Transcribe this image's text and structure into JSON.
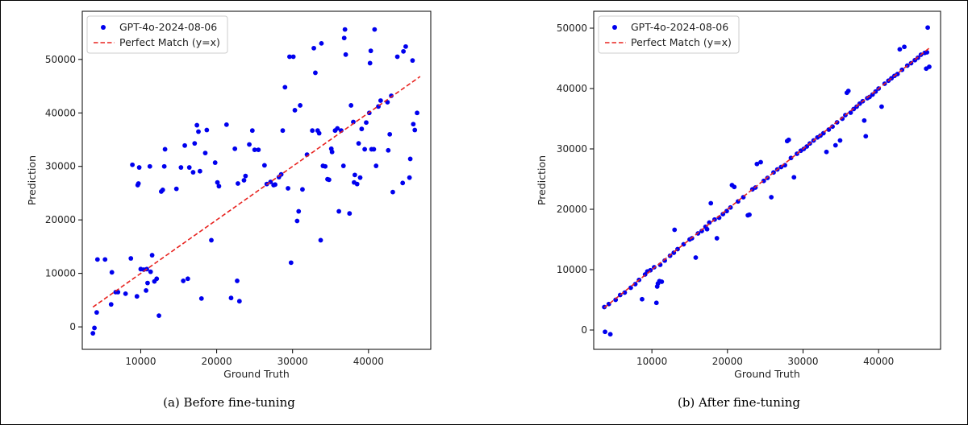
{
  "chart_data": [
    {
      "type": "scatter",
      "caption": "(a) Before fine-tuning",
      "xlabel": "Ground Truth",
      "ylabel": "Prediction",
      "xlim": [
        2300,
        48200
      ],
      "ylim": [
        -4200,
        59000
      ],
      "xticks": [
        10000,
        20000,
        30000,
        40000
      ],
      "yticks": [
        0,
        10000,
        20000,
        30000,
        40000,
        50000
      ],
      "grid": false,
      "legend_position": "top-left",
      "colors": {
        "scatter": "#0000ee",
        "line": "#e8231f"
      },
      "legend": [
        "GPT-4o-2024-08-06",
        "Perfect Match (y=x)"
      ],
      "reference_line": {
        "type": "y=x",
        "from": 3700,
        "to": 46800
      },
      "points": [
        [
          3700,
          -1200
        ],
        [
          3900,
          -200
        ],
        [
          4200,
          2700
        ],
        [
          4300,
          12600
        ],
        [
          5300,
          12600
        ],
        [
          6100,
          4200
        ],
        [
          6200,
          10200
        ],
        [
          6700,
          6500
        ],
        [
          7000,
          6500
        ],
        [
          8000,
          6200
        ],
        [
          8700,
          12800
        ],
        [
          8900,
          30300
        ],
        [
          9500,
          5700
        ],
        [
          9600,
          26500
        ],
        [
          9700,
          26800
        ],
        [
          9800,
          29800
        ],
        [
          10000,
          10800
        ],
        [
          10400,
          10700
        ],
        [
          10800,
          10800
        ],
        [
          10700,
          6800
        ],
        [
          10900,
          8200
        ],
        [
          11200,
          30000
        ],
        [
          11300,
          10300
        ],
        [
          11500,
          13400
        ],
        [
          11800,
          8500
        ],
        [
          12100,
          9000
        ],
        [
          12400,
          2100
        ],
        [
          12700,
          25300
        ],
        [
          12900,
          25600
        ],
        [
          13100,
          30000
        ],
        [
          13200,
          33200
        ],
        [
          14700,
          25800
        ],
        [
          15300,
          29800
        ],
        [
          15600,
          8600
        ],
        [
          15800,
          33900
        ],
        [
          16200,
          9000
        ],
        [
          16400,
          29800
        ],
        [
          16900,
          28900
        ],
        [
          17100,
          34300
        ],
        [
          17400,
          37700
        ],
        [
          17600,
          36500
        ],
        [
          17800,
          29100
        ],
        [
          18000,
          5300
        ],
        [
          18500,
          32500
        ],
        [
          18700,
          36800
        ],
        [
          19300,
          16200
        ],
        [
          19800,
          30700
        ],
        [
          20100,
          27000
        ],
        [
          20300,
          26300
        ],
        [
          21300,
          37800
        ],
        [
          21900,
          5400
        ],
        [
          22400,
          33300
        ],
        [
          22700,
          8600
        ],
        [
          22800,
          26800
        ],
        [
          23000,
          4800
        ],
        [
          23600,
          27400
        ],
        [
          23800,
          28200
        ],
        [
          24300,
          34100
        ],
        [
          24700,
          36700
        ],
        [
          25000,
          33100
        ],
        [
          25500,
          33100
        ],
        [
          26300,
          30200
        ],
        [
          26600,
          26700
        ],
        [
          27100,
          27100
        ],
        [
          27500,
          26500
        ],
        [
          27700,
          26600
        ],
        [
          28200,
          28000
        ],
        [
          28500,
          28500
        ],
        [
          28700,
          36700
        ],
        [
          29000,
          44800
        ],
        [
          29400,
          25900
        ],
        [
          29600,
          50500
        ],
        [
          29800,
          12000
        ],
        [
          30100,
          50500
        ],
        [
          30300,
          40500
        ],
        [
          30600,
          19800
        ],
        [
          30800,
          21600
        ],
        [
          31000,
          41400
        ],
        [
          31300,
          25700
        ],
        [
          31900,
          32200
        ],
        [
          32600,
          36700
        ],
        [
          32800,
          52100
        ],
        [
          33000,
          47500
        ],
        [
          33300,
          36700
        ],
        [
          33500,
          36200
        ],
        [
          33700,
          16200
        ],
        [
          33800,
          53000
        ],
        [
          34000,
          30100
        ],
        [
          34300,
          30000
        ],
        [
          34600,
          27600
        ],
        [
          34800,
          27500
        ],
        [
          35100,
          33300
        ],
        [
          35200,
          32700
        ],
        [
          35600,
          36700
        ],
        [
          35900,
          37100
        ],
        [
          36100,
          21600
        ],
        [
          36400,
          36700
        ],
        [
          36700,
          30100
        ],
        [
          36800,
          54000
        ],
        [
          36900,
          55600
        ],
        [
          37000,
          50900
        ],
        [
          37500,
          21200
        ],
        [
          37700,
          41400
        ],
        [
          38000,
          38300
        ],
        [
          38100,
          27000
        ],
        [
          38200,
          28400
        ],
        [
          38500,
          26700
        ],
        [
          38700,
          34300
        ],
        [
          38900,
          27900
        ],
        [
          39100,
          37000
        ],
        [
          39500,
          33200
        ],
        [
          39700,
          38200
        ],
        [
          40100,
          40000
        ],
        [
          40200,
          49300
        ],
        [
          40300,
          51600
        ],
        [
          40400,
          33200
        ],
        [
          40700,
          33200
        ],
        [
          40800,
          55600
        ],
        [
          41000,
          30100
        ],
        [
          41300,
          41200
        ],
        [
          41600,
          42300
        ],
        [
          42500,
          42000
        ],
        [
          42600,
          33000
        ],
        [
          42800,
          36000
        ],
        [
          43000,
          43200
        ],
        [
          43200,
          25200
        ],
        [
          43800,
          50500
        ],
        [
          44500,
          26900
        ],
        [
          44600,
          51500
        ],
        [
          44900,
          52400
        ],
        [
          45400,
          27900
        ],
        [
          45500,
          31400
        ],
        [
          45800,
          49800
        ],
        [
          45900,
          37900
        ],
        [
          46100,
          36800
        ],
        [
          46400,
          40000
        ]
      ]
    },
    {
      "type": "scatter",
      "caption": "(b) After fine-tuning",
      "xlabel": "Ground Truth",
      "ylabel": "Prediction",
      "xlim": [
        2300,
        48200
      ],
      "ylim": [
        -3200,
        52800
      ],
      "xticks": [
        10000,
        20000,
        30000,
        40000
      ],
      "yticks": [
        0,
        10000,
        20000,
        30000,
        40000,
        50000
      ],
      "grid": false,
      "legend_position": "top-left",
      "colors": {
        "scatter": "#0000ee",
        "line": "#e8231f"
      },
      "legend": [
        "GPT-4o-2024-08-06",
        "Perfect Match (y=x)"
      ],
      "reference_line": {
        "type": "y=x",
        "from": 3700,
        "to": 46800
      },
      "points": [
        [
          3700,
          3800
        ],
        [
          3800,
          -300
        ],
        [
          4300,
          4300
        ],
        [
          4500,
          -700
        ],
        [
          5200,
          5000
        ],
        [
          5800,
          5800
        ],
        [
          6400,
          6200
        ],
        [
          7200,
          7000
        ],
        [
          7800,
          7600
        ],
        [
          8300,
          8300
        ],
        [
          8700,
          5100
        ],
        [
          9100,
          9200
        ],
        [
          9400,
          9700
        ],
        [
          9800,
          9900
        ],
        [
          10300,
          10400
        ],
        [
          10600,
          4500
        ],
        [
          10700,
          7200
        ],
        [
          10800,
          7700
        ],
        [
          11000,
          8100
        ],
        [
          11100,
          10800
        ],
        [
          11300,
          8000
        ],
        [
          11700,
          11500
        ],
        [
          12400,
          12300
        ],
        [
          12900,
          12800
        ],
        [
          13000,
          16600
        ],
        [
          13400,
          13400
        ],
        [
          14200,
          14200
        ],
        [
          15000,
          15000
        ],
        [
          15300,
          15200
        ],
        [
          15800,
          12000
        ],
        [
          16100,
          16000
        ],
        [
          16600,
          16400
        ],
        [
          17100,
          17100
        ],
        [
          17300,
          16700
        ],
        [
          17600,
          17800
        ],
        [
          17800,
          21000
        ],
        [
          18300,
          18300
        ],
        [
          18600,
          15200
        ],
        [
          18900,
          18600
        ],
        [
          19400,
          19200
        ],
        [
          19900,
          19700
        ],
        [
          20400,
          20300
        ],
        [
          20600,
          24000
        ],
        [
          20900,
          23700
        ],
        [
          21400,
          21300
        ],
        [
          22100,
          22000
        ],
        [
          22700,
          19000
        ],
        [
          22900,
          19100
        ],
        [
          23300,
          23300
        ],
        [
          23700,
          23600
        ],
        [
          23900,
          27500
        ],
        [
          24400,
          27800
        ],
        [
          24800,
          24700
        ],
        [
          25300,
          25200
        ],
        [
          25800,
          22000
        ],
        [
          26100,
          26100
        ],
        [
          26600,
          26600
        ],
        [
          27100,
          27000
        ],
        [
          27600,
          27300
        ],
        [
          27900,
          31300
        ],
        [
          28100,
          31500
        ],
        [
          28400,
          28500
        ],
        [
          28800,
          25300
        ],
        [
          29200,
          29200
        ],
        [
          29700,
          29700
        ],
        [
          30100,
          30000
        ],
        [
          30500,
          30400
        ],
        [
          30900,
          30900
        ],
        [
          31400,
          31400
        ],
        [
          31900,
          31900
        ],
        [
          32300,
          32200
        ],
        [
          32700,
          32600
        ],
        [
          33100,
          29500
        ],
        [
          33400,
          33200
        ],
        [
          33900,
          33700
        ],
        [
          34300,
          30600
        ],
        [
          34500,
          34400
        ],
        [
          34900,
          31400
        ],
        [
          35200,
          35000
        ],
        [
          35600,
          35600
        ],
        [
          35800,
          39300
        ],
        [
          36000,
          39600
        ],
        [
          36300,
          36000
        ],
        [
          36700,
          36600
        ],
        [
          37100,
          37000
        ],
        [
          37500,
          37500
        ],
        [
          37900,
          37900
        ],
        [
          38100,
          34700
        ],
        [
          38300,
          32100
        ],
        [
          38500,
          38400
        ],
        [
          38800,
          38600
        ],
        [
          39200,
          39000
        ],
        [
          39600,
          39500
        ],
        [
          40000,
          40000
        ],
        [
          40400,
          37000
        ],
        [
          40800,
          40800
        ],
        [
          41300,
          41300
        ],
        [
          41700,
          41700
        ],
        [
          42100,
          42100
        ],
        [
          42500,
          42400
        ],
        [
          42800,
          46500
        ],
        [
          43100,
          43100
        ],
        [
          43400,
          46900
        ],
        [
          43800,
          43800
        ],
        [
          44300,
          44200
        ],
        [
          44800,
          44700
        ],
        [
          45200,
          45100
        ],
        [
          45600,
          45600
        ],
        [
          46100,
          45900
        ],
        [
          46400,
          46000
        ],
        [
          46300,
          43300
        ],
        [
          46500,
          50100
        ],
        [
          46700,
          43600
        ]
      ]
    }
  ]
}
